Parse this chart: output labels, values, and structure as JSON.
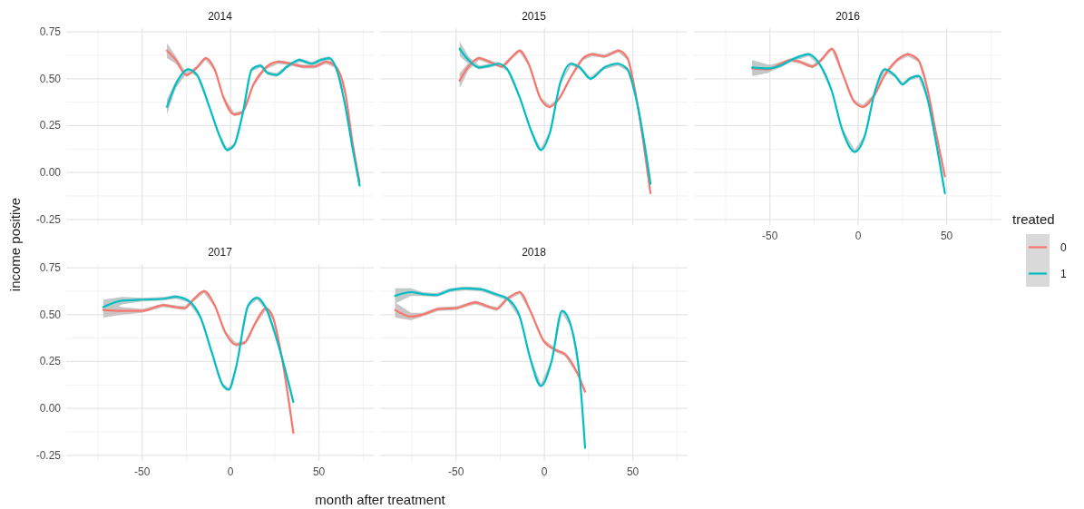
{
  "chart_data": [
    {
      "type": "line",
      "title": "2014",
      "ylabel": "income positive",
      "xlim": [
        -93,
        81
      ],
      "xticks": [
        -50,
        0,
        50
      ],
      "ylim": [
        -0.28,
        0.77
      ],
      "yticks": [
        {
          "value": -0.25,
          "label": "-0.25"
        },
        {
          "value": 0,
          "label": "0.00"
        },
        {
          "value": 0.25,
          "label": "0.25"
        },
        {
          "value": 0.5,
          "label": "0.50"
        },
        {
          "value": 0.75,
          "label": "0.75"
        }
      ],
      "grid": true,
      "tick_labels": "y",
      "line_style": "solid",
      "marker": "none",
      "series": [
        {
          "color": "#f8766d",
          "x": [
            -36,
            -31,
            -25,
            -19,
            -14,
            -9,
            -4,
            2,
            6.5,
            13,
            20,
            27,
            34,
            41,
            47.5,
            54,
            59,
            65,
            69,
            73
          ],
          "values": [
            0.65,
            0.6,
            0.52,
            0.56,
            0.61,
            0.55,
            0.4,
            0.31,
            0.32,
            0.47,
            0.56,
            0.59,
            0.58,
            0.565,
            0.565,
            0.59,
            0.57,
            0.42,
            0.16,
            -0.05
          ],
          "lower": [
            0.61,
            0.58,
            0.51,
            0.55,
            0.6,
            0.54,
            0.39,
            0.3,
            0.31,
            0.46,
            0.55,
            0.58,
            0.57,
            0.555,
            0.555,
            0.58,
            0.56,
            0.41,
            0.15,
            -0.065
          ],
          "upper": [
            0.69,
            0.62,
            0.53,
            0.57,
            0.62,
            0.56,
            0.41,
            0.32,
            0.33,
            0.48,
            0.57,
            0.6,
            0.59,
            0.575,
            0.575,
            0.6,
            0.58,
            0.43,
            0.17,
            -0.035
          ]
        },
        {
          "color": "#00bfc4",
          "x": [
            -36,
            -31,
            -24,
            -19,
            -12,
            -6,
            -2,
            2,
            7,
            12,
            17,
            21,
            26,
            32,
            39,
            46,
            51,
            56,
            60,
            65,
            69,
            73
          ],
          "values": [
            0.35,
            0.47,
            0.55,
            0.52,
            0.35,
            0.19,
            0.12,
            0.145,
            0.32,
            0.55,
            0.57,
            0.53,
            0.52,
            0.565,
            0.6,
            0.58,
            0.6,
            0.61,
            0.55,
            0.35,
            0.13,
            -0.07
          ],
          "lower": [
            0.31,
            0.45,
            0.54,
            0.51,
            0.34,
            0.18,
            0.11,
            0.135,
            0.31,
            0.54,
            0.56,
            0.52,
            0.51,
            0.555,
            0.59,
            0.57,
            0.59,
            0.6,
            0.54,
            0.34,
            0.12,
            -0.085
          ],
          "upper": [
            0.39,
            0.49,
            0.56,
            0.53,
            0.36,
            0.2,
            0.13,
            0.155,
            0.33,
            0.56,
            0.58,
            0.54,
            0.53,
            0.575,
            0.61,
            0.59,
            0.61,
            0.62,
            0.56,
            0.36,
            0.14,
            -0.055
          ]
        }
      ]
    },
    {
      "type": "line",
      "title": "2015",
      "xlim": [
        -93,
        81
      ],
      "xticks": [
        -50,
        0,
        50
      ],
      "ylim": [
        -0.28,
        0.77
      ],
      "yticks": [
        -0.25,
        0,
        0.25,
        0.5,
        0.75
      ],
      "grid": true,
      "tick_labels": false,
      "line_style": "solid",
      "marker": "none",
      "series": [
        {
          "color": "#f8766d",
          "x": [
            -48,
            -43,
            -37,
            -31,
            -24,
            -19,
            -14,
            -9,
            -2,
            3,
            8,
            15,
            22,
            27,
            34,
            42,
            47,
            51,
            56,
            60
          ],
          "values": [
            0.49,
            0.565,
            0.61,
            0.59,
            0.565,
            0.61,
            0.65,
            0.58,
            0.39,
            0.35,
            0.39,
            0.51,
            0.61,
            0.63,
            0.62,
            0.65,
            0.61,
            0.45,
            0.16,
            -0.11
          ],
          "lower": [
            0.45,
            0.545,
            0.6,
            0.58,
            0.555,
            0.6,
            0.64,
            0.57,
            0.38,
            0.34,
            0.38,
            0.5,
            0.6,
            0.62,
            0.61,
            0.64,
            0.6,
            0.44,
            0.15,
            -0.125
          ],
          "upper": [
            0.53,
            0.585,
            0.62,
            0.6,
            0.575,
            0.62,
            0.66,
            0.59,
            0.4,
            0.36,
            0.4,
            0.52,
            0.62,
            0.64,
            0.63,
            0.66,
            0.62,
            0.46,
            0.17,
            -0.095
          ]
        },
        {
          "color": "#00bfc4",
          "x": [
            -48,
            -43,
            -37,
            -31,
            -26,
            -21,
            -14,
            -7,
            -2,
            3,
            9,
            15,
            20,
            26,
            34,
            41.5,
            47,
            52,
            57,
            60
          ],
          "values": [
            0.66,
            0.6,
            0.56,
            0.57,
            0.58,
            0.55,
            0.4,
            0.21,
            0.12,
            0.21,
            0.48,
            0.58,
            0.56,
            0.5,
            0.56,
            0.58,
            0.55,
            0.39,
            0.13,
            -0.06
          ],
          "lower": [
            0.62,
            0.58,
            0.55,
            0.56,
            0.57,
            0.54,
            0.39,
            0.2,
            0.11,
            0.2,
            0.47,
            0.57,
            0.55,
            0.49,
            0.55,
            0.57,
            0.54,
            0.38,
            0.12,
            -0.075
          ],
          "upper": [
            0.7,
            0.62,
            0.57,
            0.58,
            0.59,
            0.56,
            0.41,
            0.22,
            0.13,
            0.22,
            0.49,
            0.59,
            0.57,
            0.51,
            0.57,
            0.59,
            0.56,
            0.4,
            0.14,
            -0.045
          ]
        }
      ]
    },
    {
      "type": "line",
      "title": "2016",
      "legend": "right",
      "legend_title": "treated",
      "xlim": [
        -93,
        81
      ],
      "xticks": [
        -50,
        0,
        50
      ],
      "ylim": [
        -0.28,
        0.77
      ],
      "yticks": [
        -0.25,
        0,
        0.25,
        0.5,
        0.75
      ],
      "grid": true,
      "tick_labels": "x",
      "line_style": "solid",
      "marker": "none",
      "series": [
        {
          "name": "0",
          "color": "#f8766d",
          "x": [
            -60,
            -51,
            -44,
            -38,
            -33,
            -26,
            -21,
            -15,
            -9,
            -2.5,
            2.5,
            9,
            15,
            22,
            28,
            34,
            39,
            44,
            49
          ],
          "values": [
            0.555,
            0.55,
            0.58,
            0.6,
            0.59,
            0.565,
            0.6,
            0.66,
            0.53,
            0.38,
            0.35,
            0.41,
            0.52,
            0.6,
            0.63,
            0.6,
            0.45,
            0.21,
            -0.02
          ],
          "lower": [
            0.515,
            0.53,
            0.57,
            0.59,
            0.58,
            0.555,
            0.59,
            0.65,
            0.52,
            0.37,
            0.34,
            0.4,
            0.51,
            0.59,
            0.62,
            0.59,
            0.44,
            0.2,
            -0.035
          ],
          "upper": [
            0.595,
            0.57,
            0.59,
            0.61,
            0.6,
            0.575,
            0.61,
            0.67,
            0.54,
            0.39,
            0.36,
            0.42,
            0.53,
            0.61,
            0.64,
            0.61,
            0.46,
            0.22,
            -0.005
          ]
        },
        {
          "name": "1",
          "color": "#00bfc4",
          "x": [
            -60,
            -51,
            -44,
            -38,
            -28,
            -22,
            -15,
            -9,
            -2,
            3.5,
            9.5,
            15,
            21,
            25,
            29,
            34,
            39,
            44,
            49
          ],
          "values": [
            0.56,
            0.555,
            0.57,
            0.6,
            0.63,
            0.58,
            0.435,
            0.225,
            0.11,
            0.19,
            0.435,
            0.55,
            0.515,
            0.47,
            0.5,
            0.515,
            0.4,
            0.16,
            -0.11
          ],
          "lower": [
            0.52,
            0.535,
            0.56,
            0.59,
            0.62,
            0.57,
            0.425,
            0.215,
            0.1,
            0.18,
            0.425,
            0.54,
            0.505,
            0.46,
            0.49,
            0.505,
            0.39,
            0.15,
            -0.125
          ],
          "upper": [
            0.6,
            0.575,
            0.58,
            0.61,
            0.64,
            0.59,
            0.445,
            0.235,
            0.12,
            0.2,
            0.445,
            0.56,
            0.525,
            0.48,
            0.51,
            0.525,
            0.41,
            0.17,
            -0.095
          ]
        }
      ]
    },
    {
      "type": "line",
      "title": "2017",
      "xlabel": "month after treatment",
      "xlim": [
        -93,
        81
      ],
      "xticks": [
        -50,
        0,
        50
      ],
      "ylim": [
        -0.28,
        0.77
      ],
      "yticks": [
        {
          "value": -0.25,
          "label": "-0.25"
        },
        {
          "value": 0,
          "label": "0.00"
        },
        {
          "value": 0.25,
          "label": "0.25"
        },
        {
          "value": 0.5,
          "label": "0.50"
        },
        {
          "value": 0.75,
          "label": "0.75"
        }
      ],
      "grid": true,
      "line_style": "solid",
      "marker": "none",
      "series": [
        {
          "color": "#f8766d",
          "x": [
            -72,
            -61.5,
            -50,
            -38,
            -31,
            -26,
            -21,
            -15,
            -9,
            -3,
            3,
            8,
            14,
            20,
            24,
            29.5,
            35.5
          ],
          "values": [
            0.525,
            0.52,
            0.52,
            0.55,
            0.54,
            0.535,
            0.58,
            0.625,
            0.55,
            0.405,
            0.34,
            0.35,
            0.455,
            0.535,
            0.485,
            0.245,
            -0.13
          ],
          "lower": [
            0.485,
            0.5,
            0.51,
            0.54,
            0.53,
            0.525,
            0.57,
            0.615,
            0.54,
            0.395,
            0.33,
            0.34,
            0.445,
            0.525,
            0.475,
            0.235,
            -0.145
          ],
          "upper": [
            0.565,
            0.54,
            0.53,
            0.56,
            0.55,
            0.545,
            0.59,
            0.635,
            0.56,
            0.415,
            0.35,
            0.36,
            0.465,
            0.545,
            0.495,
            0.255,
            -0.115
          ]
        },
        {
          "color": "#00bfc4",
          "x": [
            -72,
            -61.5,
            -50,
            -38,
            -31,
            -24,
            -17,
            -10.5,
            -4.5,
            -1,
            3,
            10,
            15,
            20,
            27,
            35.5
          ],
          "values": [
            0.54,
            0.575,
            0.58,
            0.585,
            0.595,
            0.575,
            0.485,
            0.295,
            0.125,
            0.1,
            0.215,
            0.55,
            0.59,
            0.535,
            0.34,
            0.035
          ],
          "lower": [
            0.5,
            0.555,
            0.57,
            0.575,
            0.585,
            0.565,
            0.475,
            0.285,
            0.115,
            0.09,
            0.205,
            0.54,
            0.58,
            0.525,
            0.33,
            0.02
          ],
          "upper": [
            0.58,
            0.595,
            0.59,
            0.595,
            0.605,
            0.585,
            0.495,
            0.305,
            0.135,
            0.11,
            0.225,
            0.56,
            0.6,
            0.545,
            0.35,
            0.05
          ]
        }
      ]
    },
    {
      "type": "line",
      "title": "2018",
      "xlim": [
        -93,
        81
      ],
      "xticks": [
        -50,
        0,
        50
      ],
      "ylim": [
        -0.28,
        0.77
      ],
      "yticks": [
        -0.25,
        0,
        0.25,
        0.5,
        0.75
      ],
      "grid": true,
      "tick_labels": "x",
      "line_style": "solid",
      "marker": "none",
      "series": [
        {
          "color": "#f8766d",
          "x": [
            -84.5,
            -75.5,
            -69,
            -60,
            -50,
            -39,
            -31,
            -27,
            -21,
            -14,
            -8,
            -0.5,
            6.5,
            11.5,
            18.5,
            23
          ],
          "values": [
            0.525,
            0.49,
            0.5,
            0.53,
            0.535,
            0.565,
            0.54,
            0.53,
            0.585,
            0.62,
            0.52,
            0.36,
            0.31,
            0.29,
            0.19,
            0.09
          ],
          "lower": [
            0.485,
            0.47,
            0.49,
            0.52,
            0.525,
            0.555,
            0.53,
            0.52,
            0.575,
            0.61,
            0.51,
            0.35,
            0.3,
            0.28,
            0.18,
            0.075
          ],
          "upper": [
            0.565,
            0.51,
            0.51,
            0.54,
            0.545,
            0.575,
            0.55,
            0.54,
            0.595,
            0.63,
            0.53,
            0.37,
            0.32,
            0.3,
            0.2,
            0.105
          ]
        },
        {
          "color": "#00bfc4",
          "x": [
            -84.5,
            -75.5,
            -69,
            -61,
            -53.5,
            -45,
            -36,
            -28,
            -21,
            -14,
            -8,
            -2,
            4,
            10,
            15,
            20,
            23
          ],
          "values": [
            0.6,
            0.62,
            0.61,
            0.605,
            0.63,
            0.64,
            0.635,
            0.61,
            0.585,
            0.49,
            0.265,
            0.12,
            0.25,
            0.52,
            0.44,
            0.165,
            -0.21
          ],
          "lower": [
            0.56,
            0.6,
            0.6,
            0.595,
            0.62,
            0.63,
            0.625,
            0.6,
            0.575,
            0.48,
            0.255,
            0.11,
            0.24,
            0.51,
            0.43,
            0.155,
            -0.225
          ],
          "upper": [
            0.64,
            0.64,
            0.62,
            0.615,
            0.64,
            0.65,
            0.645,
            0.62,
            0.595,
            0.5,
            0.275,
            0.13,
            0.26,
            0.53,
            0.45,
            0.175,
            -0.195
          ]
        }
      ]
    }
  ]
}
